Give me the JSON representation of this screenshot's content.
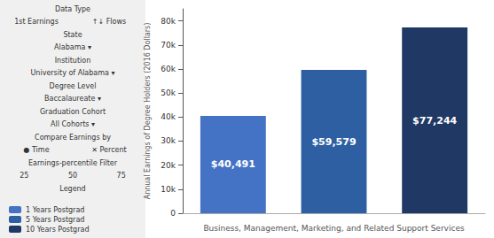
{
  "chart_data": {
    "type": "bar",
    "categories": [
      "1 Years Postgrad",
      "5 Years Postgrad",
      "10 Years Postgrad"
    ],
    "values": [
      40491,
      59579,
      77244
    ],
    "value_labels": [
      "$40,491",
      "$59,579",
      "$77,244"
    ],
    "colors": [
      "#4472C4",
      "#2E5FA3",
      "#1F3864"
    ],
    "data_labels": true,
    "xlabel": "Business, Management, Marketing, and Related Support Services",
    "ylabel": "Annual Earnings of Degree Holders (2016 Dollars)",
    "ylim": [
      0,
      85000
    ],
    "yticks": [
      0,
      {
        "value": 10000,
        "label": "10k"
      },
      {
        "value": 20000,
        "label": "20k"
      },
      {
        "value": 30000,
        "label": "30k"
      },
      {
        "value": 40000,
        "label": "40k"
      },
      {
        "value": 50000,
        "label": "50k"
      },
      {
        "value": 60000,
        "label": "60k"
      },
      {
        "value": 70000,
        "label": "70k"
      },
      {
        "value": 80000,
        "label": "80k"
      }
    ],
    "grid": false,
    "legend": "lower left",
    "tick_labels": "y",
    "annotations": [
      [
        "Data Type"
      ],
      [
        "1st Earnings",
        "↑↓ Flows"
      ],
      [
        "State"
      ],
      [
        "Alabama ▾"
      ],
      [
        "Institution"
      ],
      [
        "University of Alabama ▾"
      ],
      [
        "Degree Level"
      ],
      [
        "Baccalaureate ▾"
      ],
      [
        "Graduation Cohort"
      ],
      [
        "All Cohorts ▾"
      ],
      [
        "Compare Earnings by"
      ],
      [
        "● Time",
        "✕ Percent"
      ],
      [
        "Earnings-percentile Filter"
      ],
      [
        "25",
        "50",
        "75"
      ],
      [
        "Legend"
      ]
    ]
  }
}
